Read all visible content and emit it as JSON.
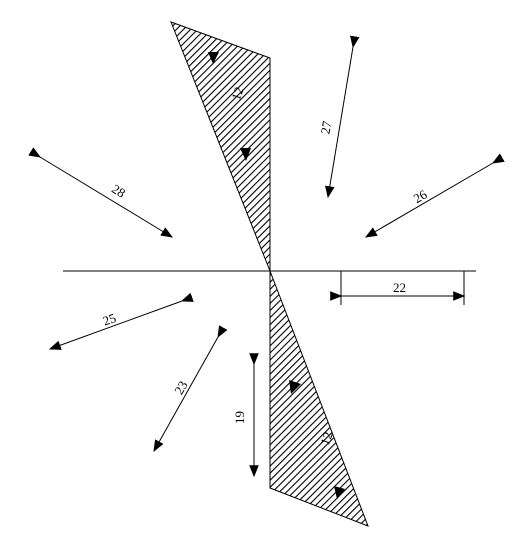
{
  "labels": {
    "top_triangle": "12",
    "bottom_triangle": "12",
    "arrow_27": "27",
    "arrow_28": "28",
    "arrow_26": "26",
    "dim_22": "22",
    "arrow_25": "25",
    "arrow_23": "23",
    "arrow_19": "19"
  },
  "colors": {
    "line": "#000000",
    "hatch": "#000000",
    "background": "#ffffff"
  }
}
